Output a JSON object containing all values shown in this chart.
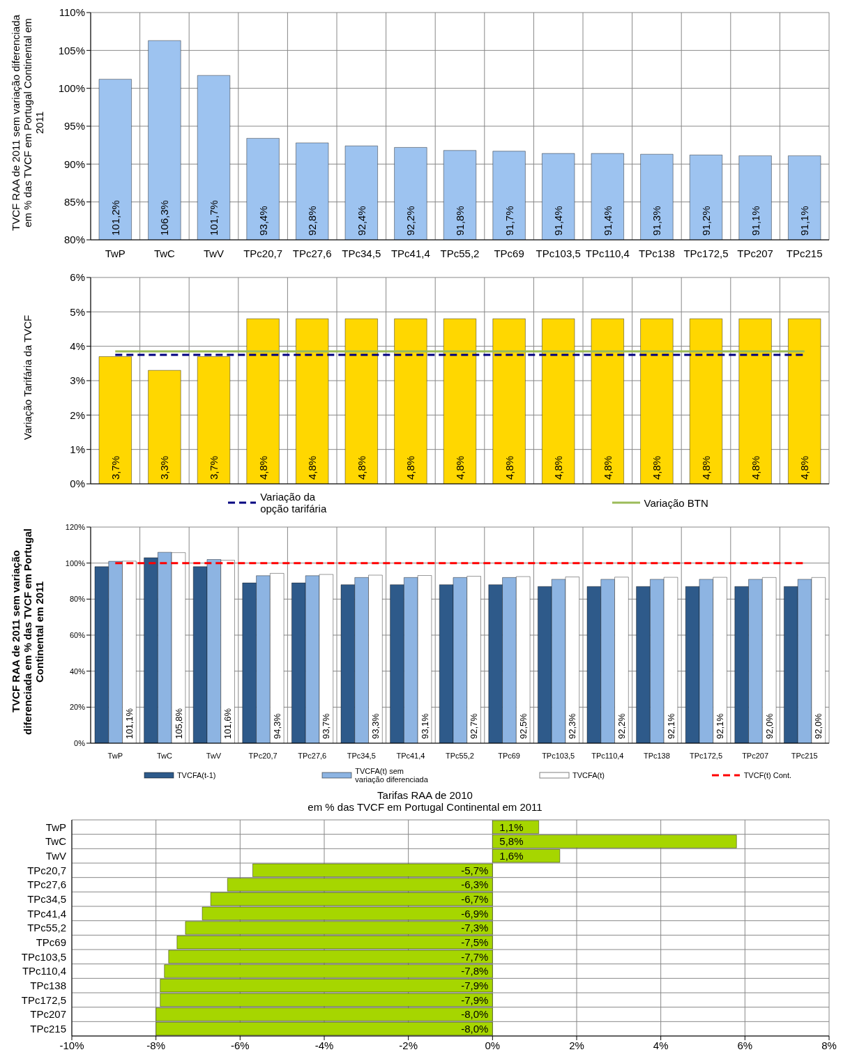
{
  "chart_data": [
    {
      "type": "bar",
      "ylabel": "TVCF RAA de 2011 sem variação diferenciada em % das TVCF em Portugal Continental em 2011",
      "categories": [
        "TwP",
        "TwC",
        "TwV",
        "TPc20,7",
        "TPc27,6",
        "TPc34,5",
        "TPc41,4",
        "TPc55,2",
        "TPc69",
        "TPc103,5",
        "TPc110,4",
        "TPc138",
        "TPc172,5",
        "TPc207",
        "TPc215"
      ],
      "values": [
        101.2,
        106.3,
        101.7,
        93.4,
        92.8,
        92.4,
        92.2,
        91.8,
        91.7,
        91.4,
        91.4,
        91.3,
        91.2,
        91.1,
        91.1
      ],
      "value_labels": [
        "101,2%",
        "106,3%",
        "101,7%",
        "93,4%",
        "92,8%",
        "92,4%",
        "92,2%",
        "91,8%",
        "91,7%",
        "91,4%",
        "91,4%",
        "91,3%",
        "91,2%",
        "91,1%",
        "91,1%"
      ],
      "color": "#9dc3f0",
      "ylim": [
        80,
        110
      ],
      "yticks": [
        {
          "value": 80,
          "label": "80%"
        },
        {
          "value": 85,
          "label": "85%"
        },
        {
          "value": 90,
          "label": "90%"
        },
        {
          "value": 95,
          "label": "95%"
        },
        {
          "value": 100,
          "label": "100%"
        },
        {
          "value": 105,
          "label": "105%"
        },
        {
          "value": 110,
          "label": "110%"
        }
      ],
      "grid": true
    },
    {
      "type": "bar",
      "ylabel": "Variação Tarifária da TVCF",
      "categories": [
        null,
        null,
        null,
        null,
        null,
        null,
        null,
        null,
        null,
        null,
        null,
        null,
        null,
        null,
        null
      ],
      "series": [
        {
          "type": "bar",
          "color": "#ffd700",
          "values": [
            3.7,
            3.3,
            3.7,
            4.8,
            4.8,
            4.8,
            4.8,
            4.8,
            4.8,
            4.8,
            4.8,
            4.8,
            4.8,
            4.8,
            4.8
          ],
          "value_labels": [
            "3,7%",
            "3,3%",
            "3,7%",
            "4,8%",
            "4,8%",
            "4,8%",
            "4,8%",
            "4,8%",
            "4,8%",
            "4,8%",
            "4,8%",
            "4,8%",
            "4,8%",
            "4,8%",
            "4,8%"
          ]
        },
        {
          "type": "line",
          "name": "Variação da opção tarifária",
          "color": "#000080",
          "line_style": "dashed",
          "values": [
            3.75,
            3.75,
            3.75,
            3.75,
            3.75,
            3.75,
            3.75,
            3.75,
            3.75,
            3.75,
            3.75,
            3.75,
            3.75,
            3.75,
            3.75
          ]
        },
        {
          "type": "line",
          "name": "Variação BTN",
          "color": "#9bbb59",
          "line_style": "solid",
          "values": [
            3.85,
            3.85,
            3.85,
            3.85,
            3.85,
            3.85,
            3.85,
            3.85,
            3.85,
            3.85,
            3.85,
            3.85,
            3.85,
            3.85,
            3.85
          ]
        }
      ],
      "ylim": [
        0,
        6
      ],
      "yticks": [
        {
          "value": 0,
          "label": "0%"
        },
        {
          "value": 1,
          "label": "1%"
        },
        {
          "value": 2,
          "label": "2%"
        },
        {
          "value": 3,
          "label": "3%"
        },
        {
          "value": 4,
          "label": "4%"
        },
        {
          "value": 5,
          "label": "5%"
        },
        {
          "value": 6,
          "label": "6%"
        }
      ],
      "grid": true,
      "legend": "bottom"
    },
    {
      "type": "bar",
      "ylabel": "TVCF RAA de 2011 sem variação diferenciada em % das TVCF em Portugal Continental em 2011",
      "categories": [
        "TwP",
        "TwC",
        "TwV",
        "TPc20,7",
        "TPc27,6",
        "TPc34,5",
        "TPc41,4",
        "TPc55,2",
        "TPc69",
        "TPc103,5",
        "TPc110,4",
        "TPc138",
        "TPc172,5",
        "TPc207",
        "TPc215"
      ],
      "series": [
        {
          "type": "bar",
          "name": "TVCFA(t-1)",
          "color": "#2e5a8a",
          "values": [
            98,
            103,
            98,
            89,
            89,
            88,
            88,
            88,
            88,
            87,
            87,
            87,
            87,
            87,
            87
          ]
        },
        {
          "type": "bar",
          "name": "TVCFA(t) sem variação diferenciada",
          "color": "#8db4e2",
          "values": [
            101,
            106,
            102,
            93,
            93,
            92,
            92,
            92,
            92,
            91,
            91,
            91,
            91,
            91,
            91
          ]
        },
        {
          "type": "bar",
          "name": "TVCFA(t)",
          "color": "#ffffff",
          "values": [
            101.1,
            105.8,
            101.6,
            94.3,
            93.7,
            93.3,
            93.1,
            92.7,
            92.5,
            92.3,
            92.2,
            92.1,
            92.1,
            92.0,
            92.0
          ],
          "value_labels": [
            "101,1%",
            "105,8%",
            "101,6%",
            "94,3%",
            "93,7%",
            "93,3%",
            "93,1%",
            "92,7%",
            "92,5%",
            "92,3%",
            "92,2%",
            "92,1%",
            "92,1%",
            "92,0%",
            "92,0%"
          ]
        },
        {
          "type": "line",
          "name": "TVCF(t) Cont.",
          "color": "#ff0000",
          "line_style": "dashed",
          "values": [
            100,
            100,
            100,
            100,
            100,
            100,
            100,
            100,
            100,
            100,
            100,
            100,
            100,
            100,
            100
          ]
        }
      ],
      "ylim": [
        0,
        120
      ],
      "yticks": [
        {
          "value": 0,
          "label": "0%"
        },
        {
          "value": 20,
          "label": "20%"
        },
        {
          "value": 40,
          "label": "40%"
        },
        {
          "value": 60,
          "label": "60%"
        },
        {
          "value": 80,
          "label": "80%"
        },
        {
          "value": 100,
          "label": "100%"
        },
        {
          "value": 120,
          "label": "120%"
        }
      ],
      "grid": true,
      "legend": "bottom"
    },
    {
      "type": "bar",
      "orientation": "horizontal",
      "title": "Tarifas RAA de 2010",
      "subtitle": "em % das TVCF em Portugal Continental em 2011",
      "categories": [
        "TwP",
        "TwC",
        "TwV",
        "TPc20,7",
        "TPc27,6",
        "TPc34,5",
        "TPc41,4",
        "TPc55,2",
        "TPc69",
        "TPc103,5",
        "TPc110,4",
        "TPc138",
        "TPc172,5",
        "TPc207",
        "TPc215"
      ],
      "values": [
        1.1,
        5.8,
        1.6,
        -5.7,
        -6.3,
        -6.7,
        -6.9,
        -7.3,
        -7.5,
        -7.7,
        -7.8,
        -7.9,
        -7.9,
        -8.0,
        -8.0
      ],
      "value_labels": [
        "1,1%",
        "5,8%",
        "1,6%",
        "-5,7%",
        "-6,3%",
        "-6,7%",
        "-6,9%",
        "-7,3%",
        "-7,5%",
        "-7,7%",
        "-7,8%",
        "-7,9%",
        "-7,9%",
        "-8,0%",
        "-8,0%"
      ],
      "color": "#a6d600",
      "xlim": [
        -10,
        8
      ],
      "xticks": [
        {
          "value": -10,
          "label": "-10%"
        },
        {
          "value": -8,
          "label": "-8%"
        },
        {
          "value": -6,
          "label": "-6%"
        },
        {
          "value": -4,
          "label": "-4%"
        },
        {
          "value": -2,
          "label": "-2%"
        },
        {
          "value": 0,
          "label": "0%"
        },
        {
          "value": 2,
          "label": "2%"
        },
        {
          "value": 4,
          "label": "4%"
        },
        {
          "value": 6,
          "label": "6%"
        },
        {
          "value": 8,
          "label": "8%"
        }
      ],
      "grid": true
    }
  ]
}
